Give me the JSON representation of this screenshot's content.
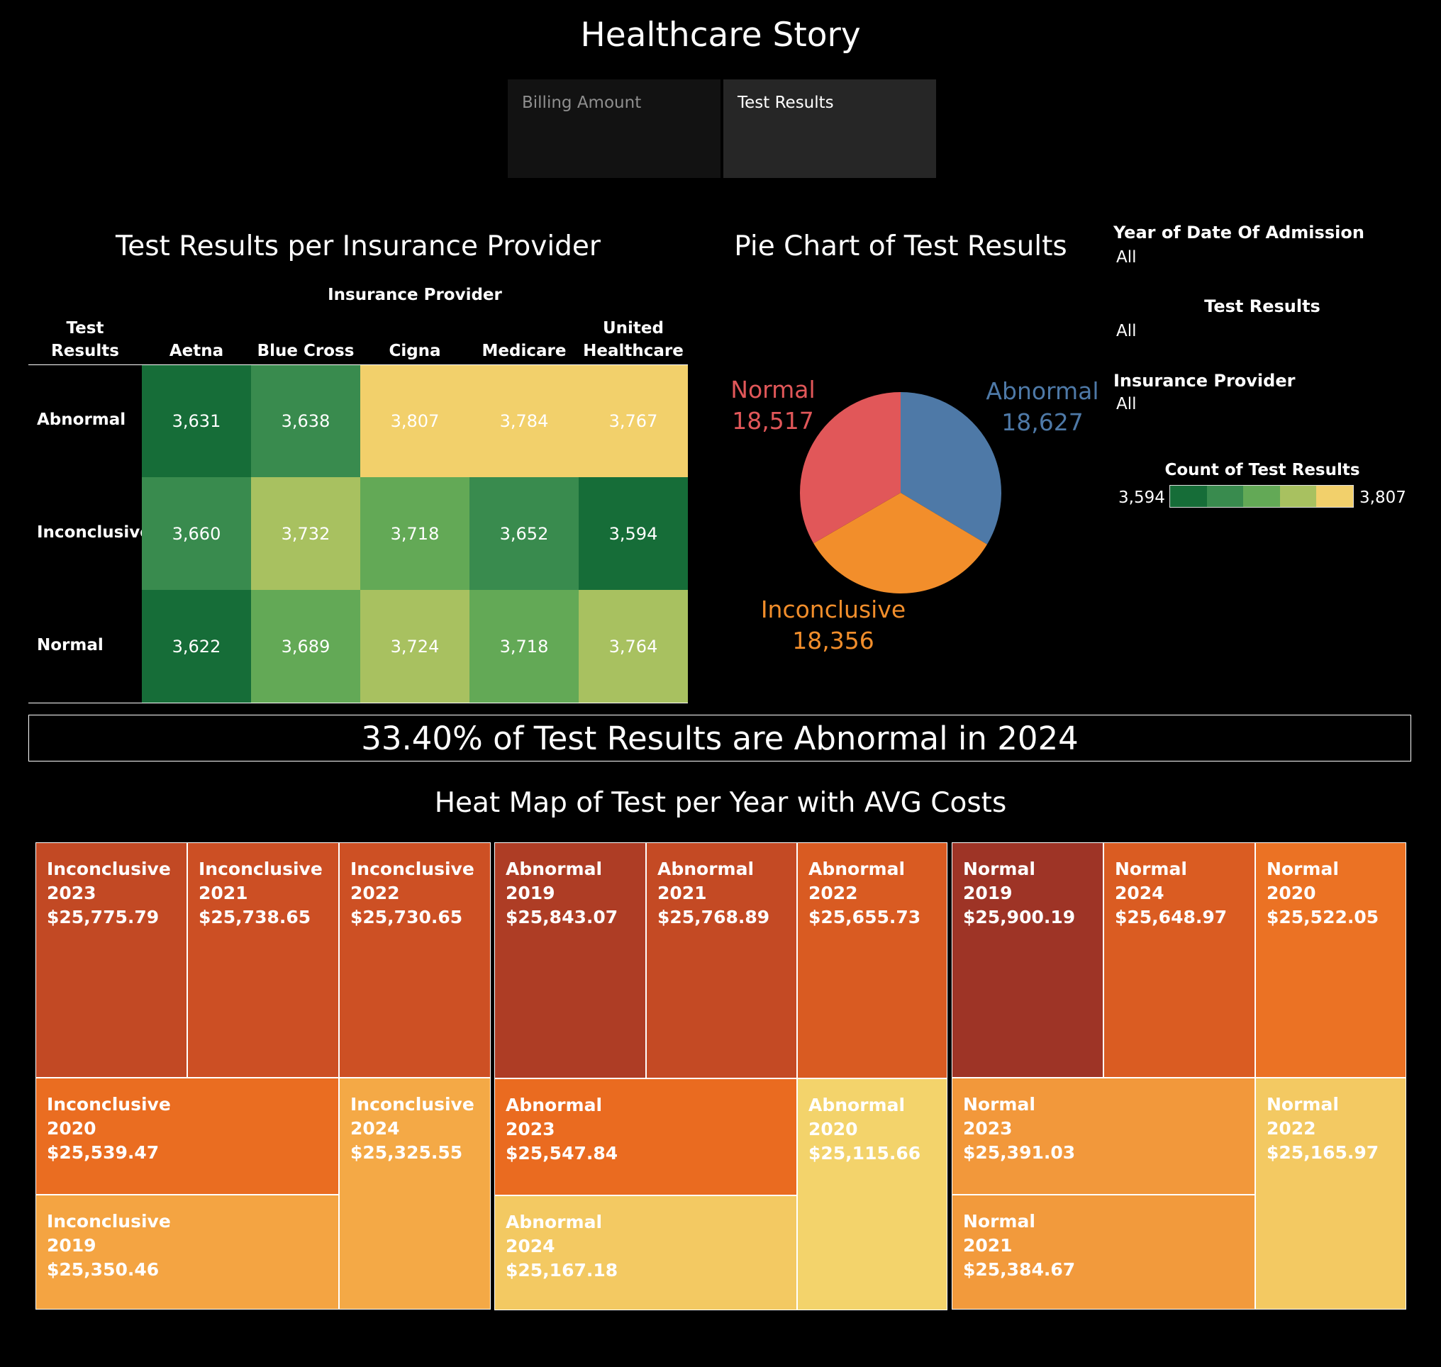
{
  "story": {
    "title": "Healthcare Story",
    "tabs": [
      {
        "label": "Billing Amount"
      },
      {
        "label": "Test Results"
      }
    ]
  },
  "matrix": {
    "title": "Test Results per Insurance Provider",
    "column_group": "Insurance Provider",
    "row_header": "Test Results",
    "row_header_lines": [
      "Test",
      "Results"
    ],
    "providers": [
      "Aetna",
      "Blue Cross",
      "Cigna",
      "Medicare",
      "United Healthcare"
    ],
    "provider_lines": [
      [
        "Aetna"
      ],
      [
        "Blue Cross"
      ],
      [
        "Cigna"
      ],
      [
        "Medicare"
      ],
      [
        "United",
        "Healthcare"
      ]
    ],
    "rows": [
      "Abnormal",
      "Inconclusive",
      "Normal"
    ],
    "display": [
      [
        "3,631",
        "3,638",
        "3,807",
        "3,784",
        "3,767"
      ],
      [
        "3,660",
        "3,732",
        "3,718",
        "3,652",
        "3,594"
      ],
      [
        "3,622",
        "3,689",
        "3,724",
        "3,718",
        "3,764"
      ]
    ]
  },
  "pie": {
    "title": "Pie Chart of Test Results",
    "labels": [
      {
        "name": "Abnormal",
        "value": "18,627"
      },
      {
        "name": "Inconclusive",
        "value": "18,356"
      },
      {
        "name": "Normal",
        "value": "18,517"
      }
    ]
  },
  "filters": [
    {
      "title": "Year of Date Of Admission",
      "value": "All"
    },
    {
      "title": "Test Results",
      "value": "All"
    },
    {
      "title": "Insurance Provider",
      "value": "All"
    }
  ],
  "legend": {
    "title": "Count of Test Results",
    "min_label": "3,594",
    "max_label": "3,807",
    "colors": [
      "#166d38",
      "#398b4e",
      "#63a956",
      "#a8c160",
      "#f2d06b"
    ]
  },
  "banner": {
    "text": "33.40% of Test Results are Abnormal in 2024"
  },
  "treemap": {
    "title": "Heat Map of Test per Year with AVG Costs",
    "cells": [
      {
        "result": "Inconclusive",
        "year": "2023",
        "cost": "$25,775.79"
      },
      {
        "result": "Inconclusive",
        "year": "2021",
        "cost": "$25,738.65"
      },
      {
        "result": "Inconclusive",
        "year": "2022",
        "cost": "$25,730.65"
      },
      {
        "result": "Inconclusive",
        "year": "2020",
        "cost": "$25,539.47"
      },
      {
        "result": "Inconclusive",
        "year": "2024",
        "cost": "$25,325.55"
      },
      {
        "result": "Inconclusive",
        "year": "2019",
        "cost": "$25,350.46"
      },
      {
        "result": "Abnormal",
        "year": "2019",
        "cost": "$25,843.07"
      },
      {
        "result": "Abnormal",
        "year": "2021",
        "cost": "$25,768.89"
      },
      {
        "result": "Abnormal",
        "year": "2022",
        "cost": "$25,655.73"
      },
      {
        "result": "Abnormal",
        "year": "2023",
        "cost": "$25,547.84"
      },
      {
        "result": "Abnormal",
        "year": "2020",
        "cost": "$25,115.66"
      },
      {
        "result": "Abnormal",
        "year": "2024",
        "cost": "$25,167.18"
      },
      {
        "result": "Normal",
        "year": "2019",
        "cost": "$25,900.19"
      },
      {
        "result": "Normal",
        "year": "2024",
        "cost": "$25,648.97"
      },
      {
        "result": "Normal",
        "year": "2020",
        "cost": "$25,522.05"
      },
      {
        "result": "Normal",
        "year": "2023",
        "cost": "$25,391.03"
      },
      {
        "result": "Normal",
        "year": "2022",
        "cost": "$25,165.97"
      },
      {
        "result": "Normal",
        "year": "2021",
        "cost": "$25,384.67"
      }
    ]
  },
  "chart_data": [
    {
      "type": "heatmap",
      "title": "Test Results per Insurance Provider",
      "xlabel": "Insurance Provider",
      "ylabel": "Test Results",
      "x": [
        "Aetna",
        "Blue Cross",
        "Cigna",
        "Medicare",
        "United Healthcare"
      ],
      "y": [
        "Abnormal",
        "Inconclusive",
        "Normal"
      ],
      "values": [
        [
          3631,
          3638,
          3807,
          3784,
          3767
        ],
        [
          3660,
          3732,
          3718,
          3652,
          3594
        ],
        [
          3622,
          3689,
          3724,
          3718,
          3764
        ]
      ],
      "color_range": [
        3594,
        3807
      ]
    },
    {
      "type": "pie",
      "title": "Pie Chart of Test Results",
      "categories": [
        "Abnormal",
        "Inconclusive",
        "Normal"
      ],
      "values": [
        18627,
        18356,
        18517
      ],
      "colors": [
        "#4e79a7",
        "#f28e2b",
        "#e15759"
      ]
    },
    {
      "type": "heatmap",
      "title": "Heat Map of Test per Year with AVG Costs",
      "series": [
        {
          "name": "Inconclusive",
          "x": [
            "2023",
            "2021",
            "2022",
            "2020",
            "2024",
            "2019"
          ],
          "values": [
            25775.79,
            25738.65,
            25730.65,
            25539.47,
            25325.55,
            25350.46
          ]
        },
        {
          "name": "Abnormal",
          "x": [
            "2019",
            "2021",
            "2022",
            "2023",
            "2020",
            "2024"
          ],
          "values": [
            25843.07,
            25768.89,
            25655.73,
            25547.84,
            25115.66,
            25167.18
          ]
        },
        {
          "name": "Normal",
          "x": [
            "2019",
            "2024",
            "2020",
            "2023",
            "2022",
            "2021"
          ],
          "values": [
            25900.19,
            25648.97,
            25522.05,
            25391.03,
            25165.97,
            25384.67
          ]
        }
      ]
    }
  ]
}
